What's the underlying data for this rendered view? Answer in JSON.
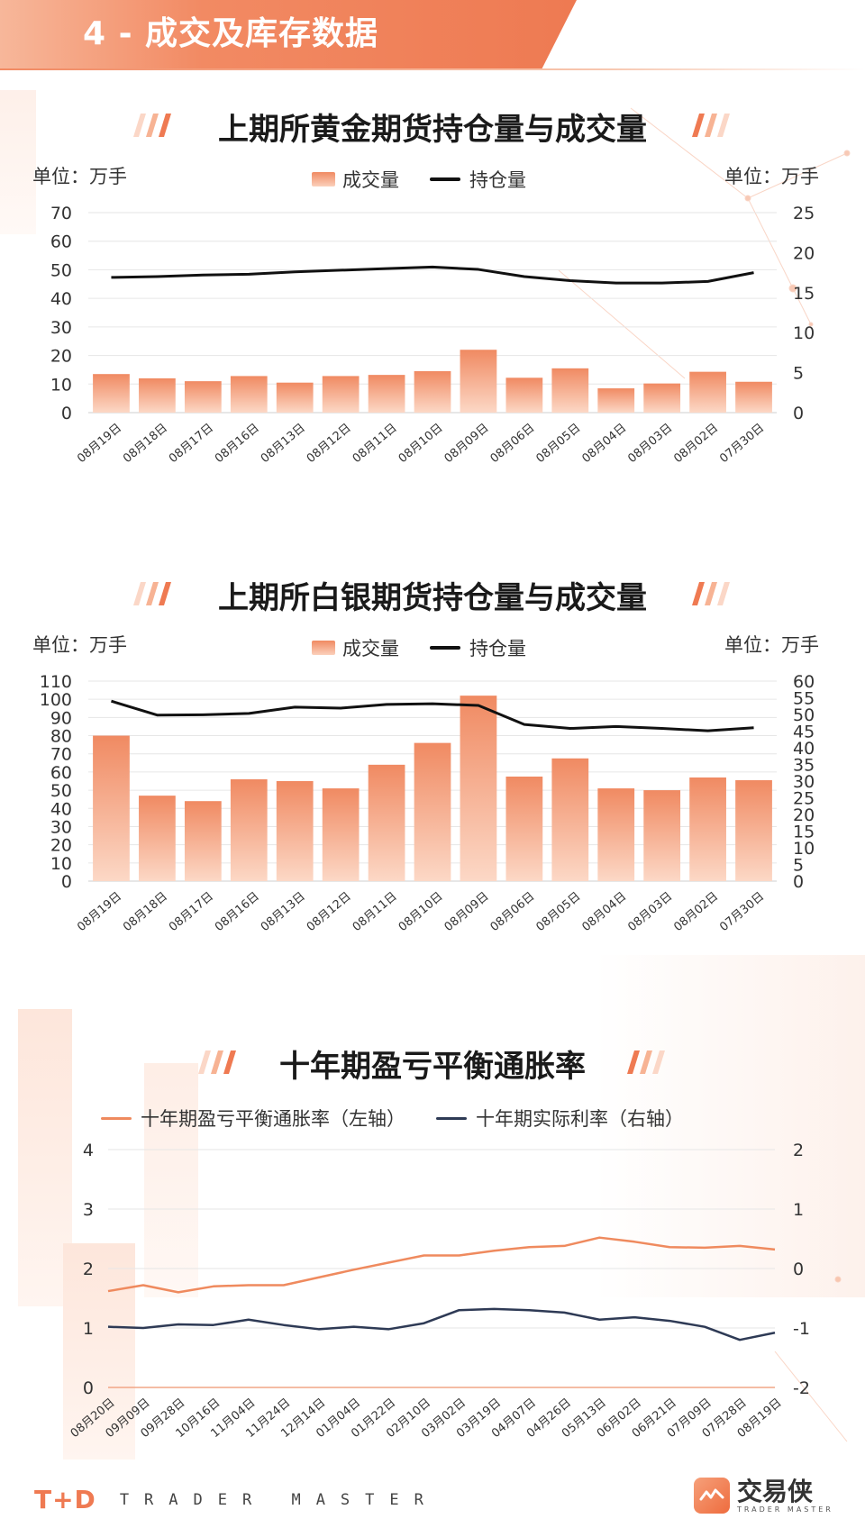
{
  "header": {
    "title": "4 - 成交及库存数据"
  },
  "colors": {
    "accent": "#ee7a52",
    "bar_top": "#f08a62",
    "bar_bottom": "#fcd8c6",
    "hold_line": "#111111",
    "breakeven_line": "#ef8a5e",
    "real_rate_line": "#2e3a55"
  },
  "charts": [
    {
      "title": "上期所黄金期货持仓量与成交量",
      "unit_left": "单位：万手",
      "unit_right": "单位：万手",
      "legend": [
        "成交量",
        "持仓量"
      ]
    },
    {
      "title": "上期所白银期货持仓量与成交量",
      "unit_left": "单位：万手",
      "unit_right": "单位：万手",
      "legend": [
        "成交量",
        "持仓量"
      ]
    },
    {
      "title": "十年期盈亏平衡通胀率",
      "legend": [
        "十年期盈亏平衡通胀率（左轴）",
        "十年期实际利率（右轴）"
      ]
    }
  ],
  "chart_data": [
    {
      "type": "bar",
      "categories": [
        "08月19日",
        "08月18日",
        "08月17日",
        "08月16日",
        "08月13日",
        "08月12日",
        "08月11日",
        "08月10日",
        "08月09日",
        "08月06日",
        "08月05日",
        "08月04日",
        "08月03日",
        "08月02日",
        "07月30日"
      ],
      "series": [
        {
          "name": "成交量",
          "type": "bar",
          "axis": "left",
          "values": [
            13.5,
            12,
            11,
            12.8,
            10.5,
            12.8,
            13.2,
            14.5,
            22,
            12.2,
            15.5,
            8.5,
            10.2,
            14.3,
            10.8
          ]
        },
        {
          "name": "持仓量",
          "type": "line",
          "axis": "right",
          "values": [
            16.9,
            17.0,
            17.2,
            17.3,
            17.6,
            17.8,
            18.0,
            18.2,
            17.9,
            17.0,
            16.5,
            16.2,
            16.2,
            16.4,
            17.5
          ]
        }
      ],
      "ylim_left": [
        0,
        70
      ],
      "yticks_left": [
        0,
        10,
        20,
        30,
        40,
        50,
        60,
        70
      ],
      "ylim_right": [
        0,
        25
      ],
      "yticks_right": [
        0,
        5,
        10,
        15,
        20,
        25
      ],
      "grid": true
    },
    {
      "type": "bar",
      "categories": [
        "08月19日",
        "08月18日",
        "08月17日",
        "08月16日",
        "08月13日",
        "08月12日",
        "08月11日",
        "08月10日",
        "08月09日",
        "08月06日",
        "08月05日",
        "08月04日",
        "08月03日",
        "08月02日",
        "07月30日"
      ],
      "series": [
        {
          "name": "成交量",
          "type": "bar",
          "axis": "left",
          "values": [
            80,
            47,
            44,
            56,
            55,
            51,
            64,
            76,
            102,
            57.5,
            67.5,
            51,
            50,
            57,
            55.5
          ]
        },
        {
          "name": "持仓量",
          "type": "line",
          "axis": "right",
          "values": [
            54,
            49.8,
            49.9,
            50.3,
            52.2,
            51.9,
            53,
            53.2,
            52.7,
            47,
            45.8,
            46.4,
            45.8,
            45.1,
            46
          ]
        }
      ],
      "ylim_left": [
        0,
        110
      ],
      "yticks_left": [
        0,
        10,
        20,
        30,
        40,
        50,
        60,
        70,
        80,
        90,
        100,
        110
      ],
      "ylim_right": [
        0,
        60
      ],
      "yticks_right": [
        0,
        5,
        10,
        15,
        20,
        25,
        30,
        35,
        40,
        45,
        50,
        55,
        60
      ],
      "grid": true
    },
    {
      "type": "line",
      "x": [
        "08月20日",
        "09月09日",
        "09月28日",
        "10月16日",
        "11月04日",
        "11月24日",
        "12月14日",
        "01月04日",
        "01月22日",
        "02月10日",
        "03月02日",
        "03月19日",
        "04月07日",
        "04月26日",
        "05月13日",
        "06月02日",
        "06月21日",
        "07月09日",
        "07月28日",
        "08月19日"
      ],
      "series": [
        {
          "name": "十年期盈亏平衡通胀率（左轴）",
          "axis": "left",
          "values": [
            1.62,
            1.72,
            1.6,
            1.7,
            1.72,
            1.72,
            1.85,
            1.98,
            2.1,
            2.22,
            2.22,
            2.3,
            2.36,
            2.38,
            2.52,
            2.45,
            2.36,
            2.35,
            2.38,
            2.32
          ]
        },
        {
          "name": "十年期实际利率（右轴）",
          "axis": "right",
          "values": [
            -0.98,
            -1.0,
            -0.94,
            -0.95,
            -0.86,
            -0.95,
            -1.02,
            -0.98,
            -1.02,
            -0.92,
            -0.7,
            -0.68,
            -0.7,
            -0.74,
            -0.86,
            -0.82,
            -0.88,
            -0.98,
            -1.2,
            -1.08
          ]
        }
      ],
      "ylim_left": [
        0,
        4
      ],
      "yticks_left": [
        0,
        1,
        2,
        3,
        4
      ],
      "ylim_right": [
        -2,
        2
      ],
      "yticks_right": [
        -2,
        -1,
        0,
        1,
        2
      ],
      "grid": true
    }
  ],
  "footer": {
    "logo": "T+D",
    "tagline": "TRADER MASTER",
    "brand_cn": "交易侠",
    "brand_en": "TRADER MASTER"
  }
}
